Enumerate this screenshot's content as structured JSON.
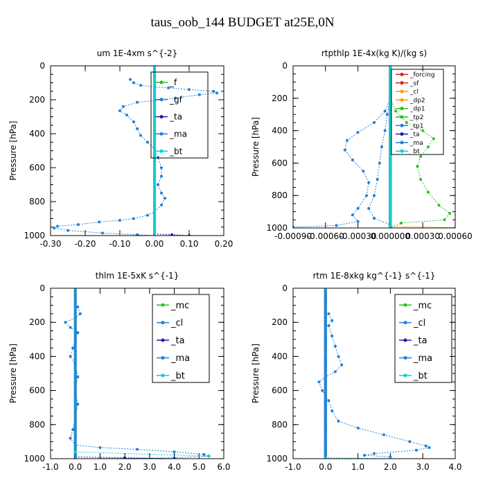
{
  "main_title": "taus_oob_144  BUDGET at25E,0N",
  "colors": {
    "blue": "#1f7fd8",
    "green": "#27c021",
    "red": "#d62020",
    "orange": "#ff9900",
    "cyan": "#00d0d0",
    "navy": "#1a1ab0"
  },
  "chart_data": [
    {
      "type": "line",
      "title": "um  1E-4xm s^{-2}",
      "ylabel": "Pressure [hPa]",
      "xlim": [
        -0.3,
        0.2
      ],
      "ylim": [
        1000,
        0
      ],
      "y_inverted": true,
      "x_ticks": [
        "-0.30",
        "-0.20",
        "-0.10",
        "0.00",
        "0.10",
        "0.20"
      ],
      "y_ticks": [
        "0",
        "200",
        "400",
        "600",
        "800",
        "1000"
      ],
      "legend": [
        "_f",
        "_gf",
        "_ta",
        "_ma",
        "_bt"
      ],
      "legend_placement": "top-right",
      "series": [
        {
          "name": "_f",
          "points": [
            [
              0,
              0
            ],
            [
              0,
              1000
            ]
          ]
        },
        {
          "name": "_gf",
          "points": [
            [
              -0.07,
              80
            ],
            [
              -0.06,
              100
            ],
            [
              -0.04,
              115
            ],
            [
              0.0,
              125
            ],
            [
              0.04,
              130
            ],
            [
              0.1,
              140
            ],
            [
              0.17,
              150
            ],
            [
              0.18,
              160
            ],
            [
              0.13,
              170
            ],
            [
              0.06,
              190
            ],
            [
              0.0,
              205
            ],
            [
              -0.05,
              215
            ],
            [
              -0.09,
              240
            ],
            [
              -0.1,
              265
            ],
            [
              -0.08,
              290
            ],
            [
              -0.06,
              330
            ],
            [
              -0.05,
              370
            ],
            [
              -0.04,
              410
            ],
            [
              -0.02,
              450
            ],
            [
              0.0,
              490
            ],
            [
              0.01,
              540
            ],
            [
              0.02,
              600
            ],
            [
              0.02,
              650
            ],
            [
              0.01,
              700
            ],
            [
              0.02,
              750
            ],
            [
              0.03,
              780
            ],
            [
              0.02,
              820
            ],
            [
              0.0,
              860
            ],
            [
              -0.02,
              880
            ],
            [
              -0.06,
              900
            ],
            [
              -0.1,
              910
            ],
            [
              -0.16,
              920
            ],
            [
              -0.22,
              935
            ],
            [
              -0.28,
              945
            ],
            [
              -0.29,
              955
            ],
            [
              -0.25,
              970
            ],
            [
              -0.15,
              985
            ],
            [
              -0.05,
              995
            ],
            [
              0,
              1000
            ]
          ]
        },
        {
          "name": "_ta",
          "points": [
            [
              0,
              990
            ],
            [
              0.05,
              995
            ],
            [
              0.1,
              1000
            ]
          ]
        },
        {
          "name": "_ma",
          "points": [
            [
              0,
              0
            ],
            [
              0,
              1000
            ]
          ]
        },
        {
          "name": "_bt",
          "points": [
            [
              0,
              0
            ],
            [
              0,
              1000
            ]
          ]
        }
      ]
    },
    {
      "type": "line",
      "title": "rtpthlp  1E-4x(kg K)/(kg s)",
      "ylabel": "Pressure [hPa]",
      "xlim": [
        -0.0009,
        0.0006
      ],
      "ylim": [
        1000,
        0
      ],
      "y_inverted": true,
      "x_ticks": [
        "-0.00090",
        "-0.00060",
        "-0.00030",
        "0.000000",
        "0.00030",
        "0.00060"
      ],
      "y_ticks": [
        "0",
        "200",
        "400",
        "600",
        "800",
        "1000"
      ],
      "legend": [
        "_forcing",
        "_sf",
        "_cl",
        "_dp2",
        "_dp1",
        "_tp2",
        "_tp1",
        "_ta",
        "_ma",
        "_bt"
      ],
      "legend_placement": "top-right",
      "series": [
        {
          "name": "_forcing",
          "points": [
            [
              0,
              0
            ],
            [
              0,
              1000
            ]
          ]
        },
        {
          "name": "_sf",
          "points": [
            [
              0,
              0
            ],
            [
              0,
              1000
            ]
          ]
        },
        {
          "name": "_cl",
          "points": [
            [
              0,
              0
            ],
            [
              0,
              990
            ],
            [
              0.0006,
              998
            ]
          ]
        },
        {
          "name": "_dp2",
          "points": [
            [
              0,
              0
            ],
            [
              0,
              1000
            ]
          ]
        },
        {
          "name": "_dp1",
          "points": [
            [
              0,
              200
            ],
            [
              5e-05,
              280
            ],
            [
              0.00015,
              350
            ],
            [
              0.0003,
              400
            ],
            [
              0.0004,
              450
            ],
            [
              0.00035,
              500
            ],
            [
              0.00028,
              560
            ],
            [
              0.00025,
              620
            ],
            [
              0.00028,
              700
            ],
            [
              0.00035,
              780
            ],
            [
              0.00045,
              860
            ],
            [
              0.00055,
              910
            ],
            [
              0.0005,
              950
            ],
            [
              0.0001,
              970
            ],
            [
              0,
              1000
            ]
          ]
        },
        {
          "name": "_tp2",
          "points": [
            [
              0,
              0
            ],
            [
              0,
              1000
            ]
          ]
        },
        {
          "name": "_tp1",
          "points": [
            [
              0,
              200
            ],
            [
              -5e-05,
              280
            ],
            [
              -0.00015,
              350
            ],
            [
              -0.0003,
              410
            ],
            [
              -0.0004,
              460
            ],
            [
              -0.00042,
              520
            ],
            [
              -0.00035,
              580
            ],
            [
              -0.00025,
              650
            ],
            [
              -0.0002,
              720
            ],
            [
              -0.00022,
              800
            ],
            [
              -0.0003,
              880
            ],
            [
              -0.00035,
              920
            ],
            [
              -0.0003,
              960
            ],
            [
              -0.0005,
              985
            ],
            [
              -0.0009,
              995
            ]
          ]
        },
        {
          "name": "_ta",
          "points": [
            [
              0,
              0
            ],
            [
              0,
              1000
            ]
          ]
        },
        {
          "name": "_ma",
          "points": [
            [
              0,
              200
            ],
            [
              -3e-05,
              300
            ],
            [
              -5e-05,
              400
            ],
            [
              -8e-05,
              500
            ],
            [
              -0.0001,
              600
            ],
            [
              -0.00012,
              700
            ],
            [
              -0.00015,
              800
            ],
            [
              -0.0002,
              880
            ],
            [
              -0.00015,
              940
            ],
            [
              0,
              980
            ]
          ]
        },
        {
          "name": "_bt",
          "points": [
            [
              0,
              0
            ],
            [
              0,
              1000
            ]
          ]
        }
      ]
    },
    {
      "type": "line",
      "title": "thlm  1E-5xK s^{-1}",
      "ylabel": "Pressure [hPa]",
      "xlim": [
        -1.0,
        6.0
      ],
      "ylim": [
        1000,
        0
      ],
      "y_inverted": true,
      "x_ticks": [
        "-1.0",
        "0.0",
        "1.0",
        "2.0",
        "3.0",
        "4.0",
        "5.0",
        "6.0"
      ],
      "y_ticks": [
        "0",
        "200",
        "400",
        "600",
        "800",
        "1000"
      ],
      "legend": [
        "_mc",
        "_cl",
        "_ta",
        "_ma",
        "_bt"
      ],
      "legend_placement": "top-right",
      "series": [
        {
          "name": "_mc",
          "points": [
            [
              0,
              0
            ],
            [
              0,
              1000
            ]
          ]
        },
        {
          "name": "_cl",
          "points": [
            [
              0.1,
              110
            ],
            [
              0.2,
              150
            ],
            [
              0.0,
              175
            ],
            [
              -0.4,
              200
            ],
            [
              -0.2,
              230
            ],
            [
              0.1,
              260
            ],
            [
              0.0,
              300
            ],
            [
              -0.1,
              350
            ],
            [
              -0.2,
              400
            ],
            [
              0.0,
              450
            ],
            [
              0.1,
              520
            ],
            [
              0.0,
              600
            ],
            [
              0.1,
              680
            ],
            [
              0.0,
              760
            ],
            [
              -0.1,
              830
            ],
            [
              -0.2,
              880
            ],
            [
              0.0,
              920
            ],
            [
              1.0,
              935
            ],
            [
              2.5,
              945
            ],
            [
              4.0,
              960
            ],
            [
              5.2,
              975
            ],
            [
              5.4,
              985
            ],
            [
              4.0,
              995
            ],
            [
              1.0,
              1000
            ]
          ]
        },
        {
          "name": "_ta",
          "points": [
            [
              0,
              990
            ],
            [
              2.0,
              995
            ],
            [
              4.0,
              1000
            ]
          ]
        },
        {
          "name": "_ma",
          "points": [
            [
              0,
              0
            ],
            [
              0,
              1000
            ]
          ]
        },
        {
          "name": "_bt",
          "points": [
            [
              0,
              0
            ],
            [
              0,
              960
            ],
            [
              5.4,
              985
            ]
          ]
        }
      ]
    },
    {
      "type": "line",
      "title": "rtm  1E-8xkg kg^{-1} s^{-1}",
      "ylabel": "Pressure [hPa]",
      "xlim": [
        -1.0,
        4.0
      ],
      "ylim": [
        1000,
        0
      ],
      "y_inverted": true,
      "x_ticks": [
        "-1.0",
        "0.0",
        "1.0",
        "2.0",
        "3.0",
        "4.0"
      ],
      "y_ticks": [
        "0",
        "200",
        "400",
        "600",
        "800",
        "1000"
      ],
      "legend": [
        "_mc",
        "_cl",
        "_ta",
        "_ma",
        "_bt"
      ],
      "legend_placement": "top-right",
      "series": [
        {
          "name": "_mc",
          "points": [
            [
              0,
              0
            ],
            [
              0,
              1000
            ]
          ]
        },
        {
          "name": "_cl",
          "points": [
            [
              0.1,
              150
            ],
            [
              0.2,
              190
            ],
            [
              0.1,
              220
            ],
            [
              0.2,
              280
            ],
            [
              0.3,
              340
            ],
            [
              0.4,
              400
            ],
            [
              0.5,
              450
            ],
            [
              0.3,
              490
            ],
            [
              0.0,
              520
            ],
            [
              -0.2,
              550
            ],
            [
              -0.1,
              600
            ],
            [
              0.1,
              660
            ],
            [
              0.2,
              720
            ],
            [
              0.4,
              780
            ],
            [
              1.0,
              820
            ],
            [
              1.8,
              860
            ],
            [
              2.6,
              900
            ],
            [
              3.1,
              925
            ],
            [
              3.2,
              935
            ],
            [
              2.8,
              950
            ],
            [
              1.5,
              970
            ],
            [
              1.2,
              980
            ],
            [
              2.0,
              990
            ],
            [
              2.0,
              1000
            ]
          ]
        },
        {
          "name": "_ta",
          "points": [
            [
              0,
              0
            ],
            [
              0,
              1000
            ]
          ]
        },
        {
          "name": "_ma",
          "points": [
            [
              0,
              0
            ],
            [
              0,
              1000
            ]
          ]
        },
        {
          "name": "_bt",
          "points": [
            [
              0,
              0
            ],
            [
              0,
              995
            ],
            [
              2.0,
              1000
            ]
          ]
        }
      ]
    }
  ]
}
